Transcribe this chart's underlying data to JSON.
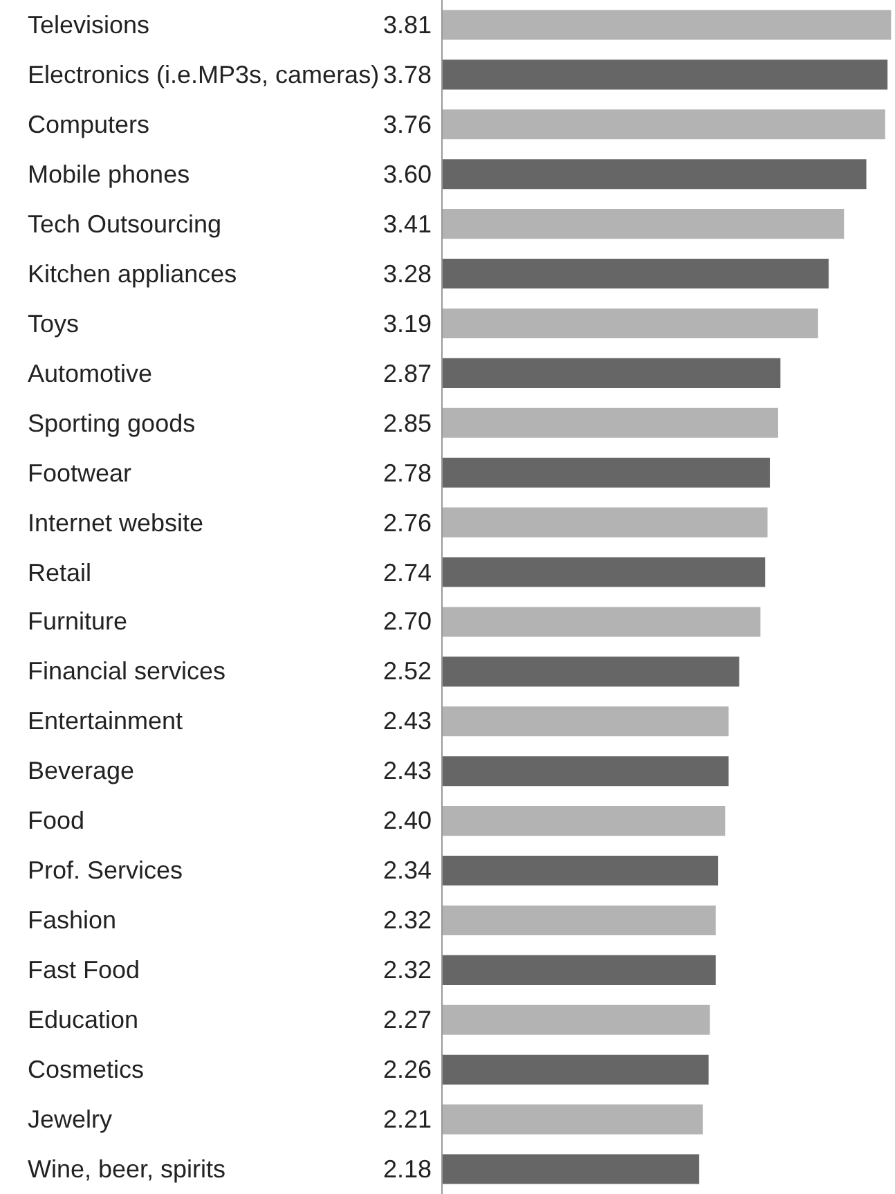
{
  "chart_data": {
    "type": "bar",
    "orientation": "horizontal",
    "categories": [
      "Televisions",
      "Electronics (i.e.MP3s, cameras)",
      "Computers",
      "Mobile phones",
      "Tech Outsourcing",
      "Kitchen appliances",
      "Toys",
      "Automotive",
      "Sporting goods",
      "Footwear",
      "Internet website",
      "Retail",
      "Furniture",
      "Financial services",
      "Entertainment",
      "Beverage",
      "Food",
      "Prof. Services",
      "Fashion",
      "Fast Food",
      "Education",
      "Cosmetics",
      "Jewelry",
      "Wine, beer, spirits"
    ],
    "values": [
      3.81,
      3.78,
      3.76,
      3.6,
      3.41,
      3.28,
      3.19,
      2.87,
      2.85,
      2.78,
      2.76,
      2.74,
      2.7,
      2.52,
      2.43,
      2.43,
      2.4,
      2.34,
      2.32,
      2.32,
      2.27,
      2.26,
      2.21,
      2.18
    ],
    "value_labels": [
      "3.81",
      "3.78",
      "3.76",
      "3.60",
      "3.41",
      "3.28",
      "3.19",
      "2.87",
      "2.85",
      "2.78",
      "2.76",
      "2.74",
      "2.70",
      "2.52",
      "2.43",
      "2.43",
      "2.40",
      "2.34",
      "2.32",
      "2.32",
      "2.27",
      "2.26",
      "2.21",
      "2.18"
    ],
    "colors": [
      "#b3b3b3",
      "#666666",
      "#b3b3b3",
      "#666666",
      "#b3b3b3",
      "#666666",
      "#b3b3b3",
      "#666666",
      "#b3b3b3",
      "#666666",
      "#b3b3b3",
      "#666666",
      "#b3b3b3",
      "#666666",
      "#b3b3b3",
      "#666666",
      "#b3b3b3",
      "#666666",
      "#b3b3b3",
      "#666666",
      "#b3b3b3",
      "#666666",
      "#b3b3b3",
      "#666666"
    ],
    "xlim": [
      0,
      3.82
    ]
  }
}
